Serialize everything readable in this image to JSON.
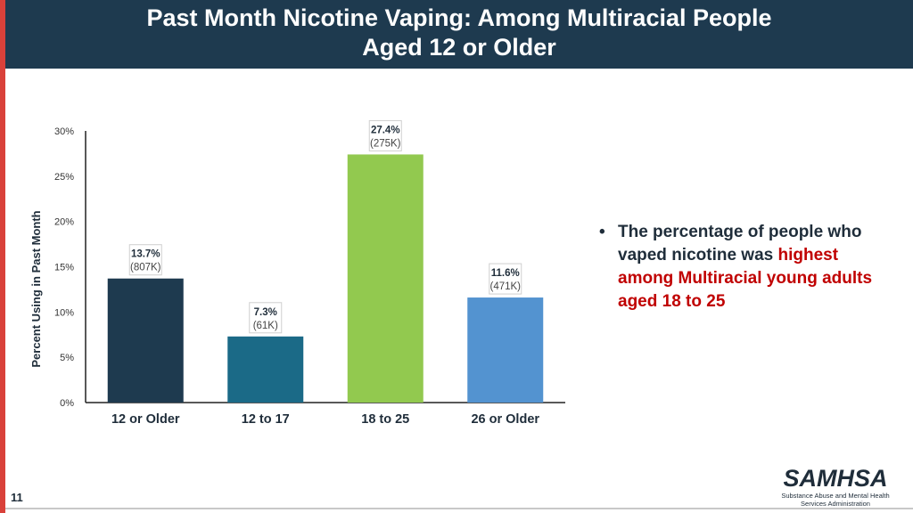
{
  "header": {
    "title_line1": "Past Month Nicotine Vaping: Among Multiracial People",
    "title_line2": "Aged 12 or Older"
  },
  "bullet": {
    "dot": "•",
    "text_normal": "The percentage of people who vaped nicotine was ",
    "text_highlight": "highest among Multiracial young adults aged 18 to 25"
  },
  "page_number": "11",
  "logo": {
    "name": "SAMHSA",
    "subtitle_line1": "Substance Abuse and Mental Health",
    "subtitle_line2": "Services Administration"
  },
  "colors": {
    "header_bg": "#1e3a4f",
    "accent_red": "#d9413a",
    "highlight_red": "#c00000"
  },
  "chart_data": {
    "type": "bar",
    "title": "",
    "xlabel": "",
    "ylabel": "Percent Using in Past Month",
    "ylim": [
      0,
      30
    ],
    "yticks": [
      0,
      5,
      10,
      15,
      20,
      25,
      30
    ],
    "ytick_labels": [
      "0%",
      "5%",
      "10%",
      "15%",
      "20%",
      "25%",
      "30%"
    ],
    "categories": [
      "12 or Older",
      "12 to 17",
      "18 to 25",
      "26 or Older"
    ],
    "values": [
      13.7,
      7.3,
      27.4,
      11.6
    ],
    "value_labels": [
      "13.7%",
      "7.3%",
      "27.4%",
      "11.6%"
    ],
    "count_labels": [
      "(807K)",
      "(61K)",
      "(275K)",
      "(471K)"
    ],
    "bar_colors": [
      "#1e3a4f",
      "#1b6a87",
      "#92c94f",
      "#5393d0"
    ]
  }
}
